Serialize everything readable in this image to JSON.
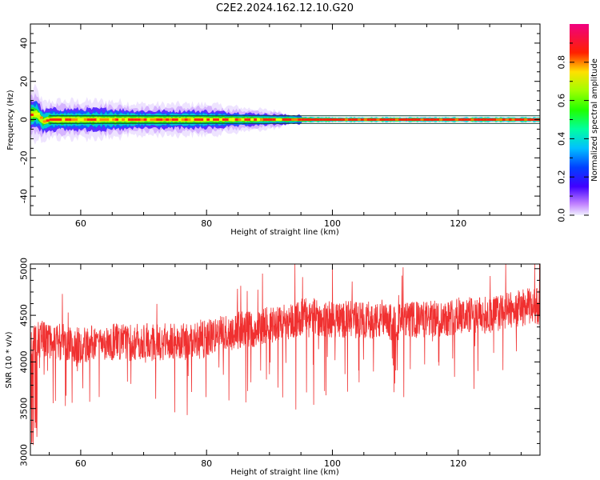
{
  "title": "C2E2.2024.162.12.10.G20",
  "chart_data": [
    {
      "type": "heatmap",
      "xlabel": "Height of straight line (km)",
      "ylabel": "Frequency (Hz)",
      "xlim": [
        52,
        133
      ],
      "ylim": [
        -50,
        50
      ],
      "xticks": [
        60,
        80,
        100,
        120
      ],
      "yticks": [
        -40,
        -20,
        0,
        20,
        40
      ],
      "colorbar": {
        "label": "Normalized spectral amplitude",
        "range": [
          0,
          1
        ],
        "ticks": [
          "0.0",
          "0.2",
          "0.4",
          "0.6",
          "0.8"
        ]
      },
      "band": [
        {
          "x": 52,
          "f_center": 2.5,
          "halfwidth": 4
        },
        {
          "x": 53,
          "f_center": 3,
          "halfwidth": 4
        },
        {
          "x": 54,
          "f_center": -1,
          "halfwidth": 3
        },
        {
          "x": 55,
          "f_center": 0,
          "halfwidth": 3
        },
        {
          "x": 60,
          "f_center": 0,
          "halfwidth": 3
        },
        {
          "x": 65,
          "f_center": 0,
          "halfwidth": 3
        },
        {
          "x": 70,
          "f_center": 0,
          "halfwidth": 2.5
        },
        {
          "x": 75,
          "f_center": 0,
          "halfwidth": 2.5
        },
        {
          "x": 80,
          "f_center": 0,
          "halfwidth": 2.5
        },
        {
          "x": 85,
          "f_center": 0,
          "halfwidth": 2
        },
        {
          "x": 90,
          "f_center": 0,
          "halfwidth": 1.5
        },
        {
          "x": 100,
          "f_center": 0,
          "halfwidth": 1
        },
        {
          "x": 110,
          "f_center": 0,
          "halfwidth": 1
        },
        {
          "x": 120,
          "f_center": 0,
          "halfwidth": 1
        },
        {
          "x": 133,
          "f_center": 0,
          "halfwidth": 1
        }
      ]
    },
    {
      "type": "line",
      "xlabel": "Height of straight line (km)",
      "ylabel": "SNR (10 * v/v)",
      "xlim": [
        52,
        133
      ],
      "ylim": [
        3000,
        5050
      ],
      "xticks": [
        60,
        80,
        100,
        120
      ],
      "yticks": [
        3000,
        3500,
        4000,
        4500,
        5000
      ],
      "color": "#f03030",
      "series": [
        {
          "x": [
            52,
            54,
            56,
            58,
            60,
            62,
            64,
            66,
            68,
            70,
            72,
            74,
            76,
            78,
            80,
            82,
            84,
            86,
            88,
            90,
            92,
            94,
            96,
            98,
            100,
            102,
            104,
            106,
            108,
            110,
            112,
            114,
            116,
            118,
            120,
            122,
            124,
            126,
            128,
            130,
            132,
            133
          ],
          "values": [
            4200,
            4250,
            4220,
            4200,
            4180,
            4200,
            4220,
            4210,
            4200,
            4220,
            4200,
            4230,
            4220,
            4210,
            4250,
            4300,
            4320,
            4350,
            4350,
            4400,
            4430,
            4450,
            4500,
            4470,
            4450,
            4460,
            4450,
            4450,
            4430,
            4420,
            4450,
            4450,
            4460,
            4470,
            4500,
            4500,
            4500,
            4520,
            4550,
            4580,
            4600,
            4600
          ],
          "noise_amplitude": 250,
          "min_value": 3100,
          "max_value": 5050
        }
      ]
    }
  ]
}
